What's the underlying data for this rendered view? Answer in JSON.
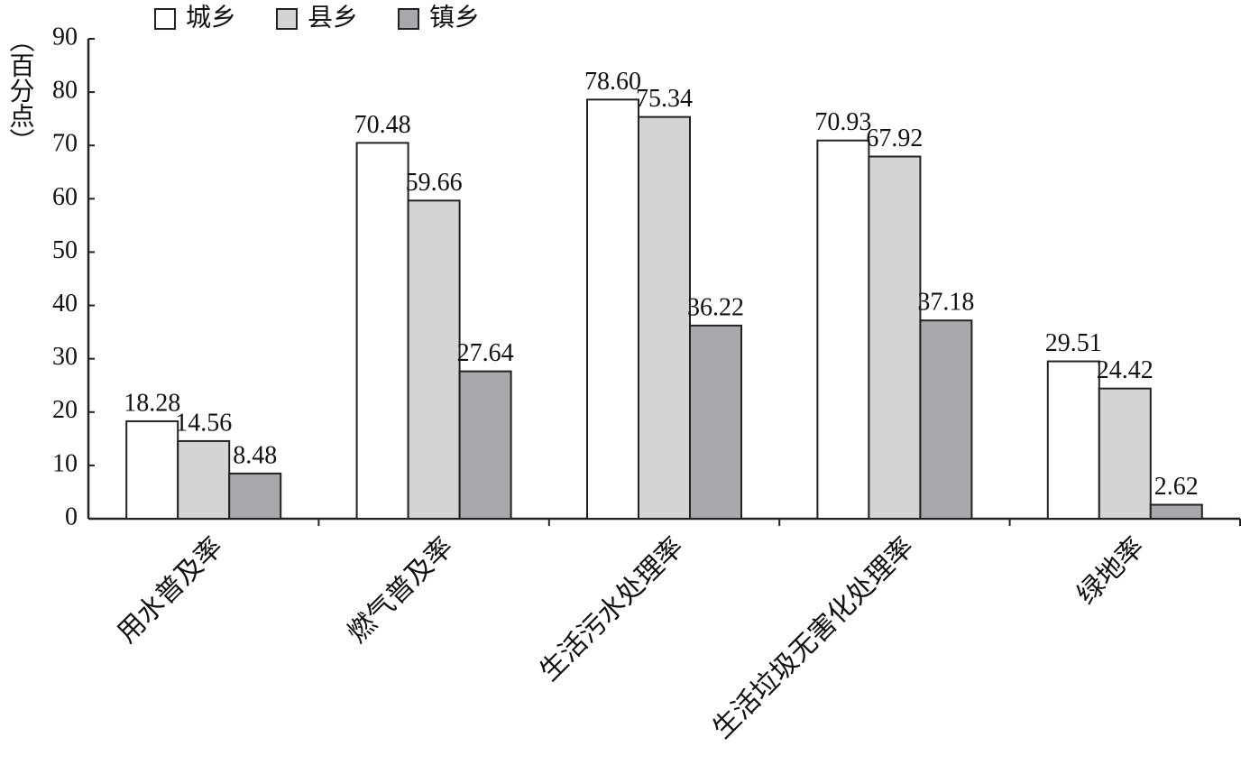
{
  "chart_data": {
    "type": "bar",
    "y_label": "（百分点）",
    "categories": [
      "用水普及率",
      "燃气普及率",
      "生活污水处理率",
      "生活垃圾无害化处理率",
      "绿地率"
    ],
    "series": [
      {
        "name": "城乡",
        "color": "#ffffff",
        "values": [
          18.28,
          70.48,
          78.6,
          70.93,
          29.51
        ],
        "value_labels": [
          "18.28",
          "70.48",
          "78.60",
          "70.93",
          "29.51"
        ]
      },
      {
        "name": "县乡",
        "color": "#d4d4d7",
        "values": [
          14.56,
          59.66,
          75.34,
          67.92,
          24.42
        ],
        "value_labels": [
          "14.56",
          "59.66",
          "75.34",
          "67.92",
          "24.42"
        ]
      },
      {
        "name": "镇乡",
        "color": "#a7a8ab",
        "values": [
          8.48,
          27.64,
          36.22,
          37.18,
          2.62
        ],
        "value_labels": [
          "8.48",
          "27.64",
          "36.22",
          "37.18",
          "2.62"
        ]
      }
    ],
    "ylim": [
      0,
      90
    ],
    "yticks": [
      0,
      10,
      20,
      30,
      40,
      50,
      60,
      70,
      80,
      90
    ],
    "grid": false
  }
}
